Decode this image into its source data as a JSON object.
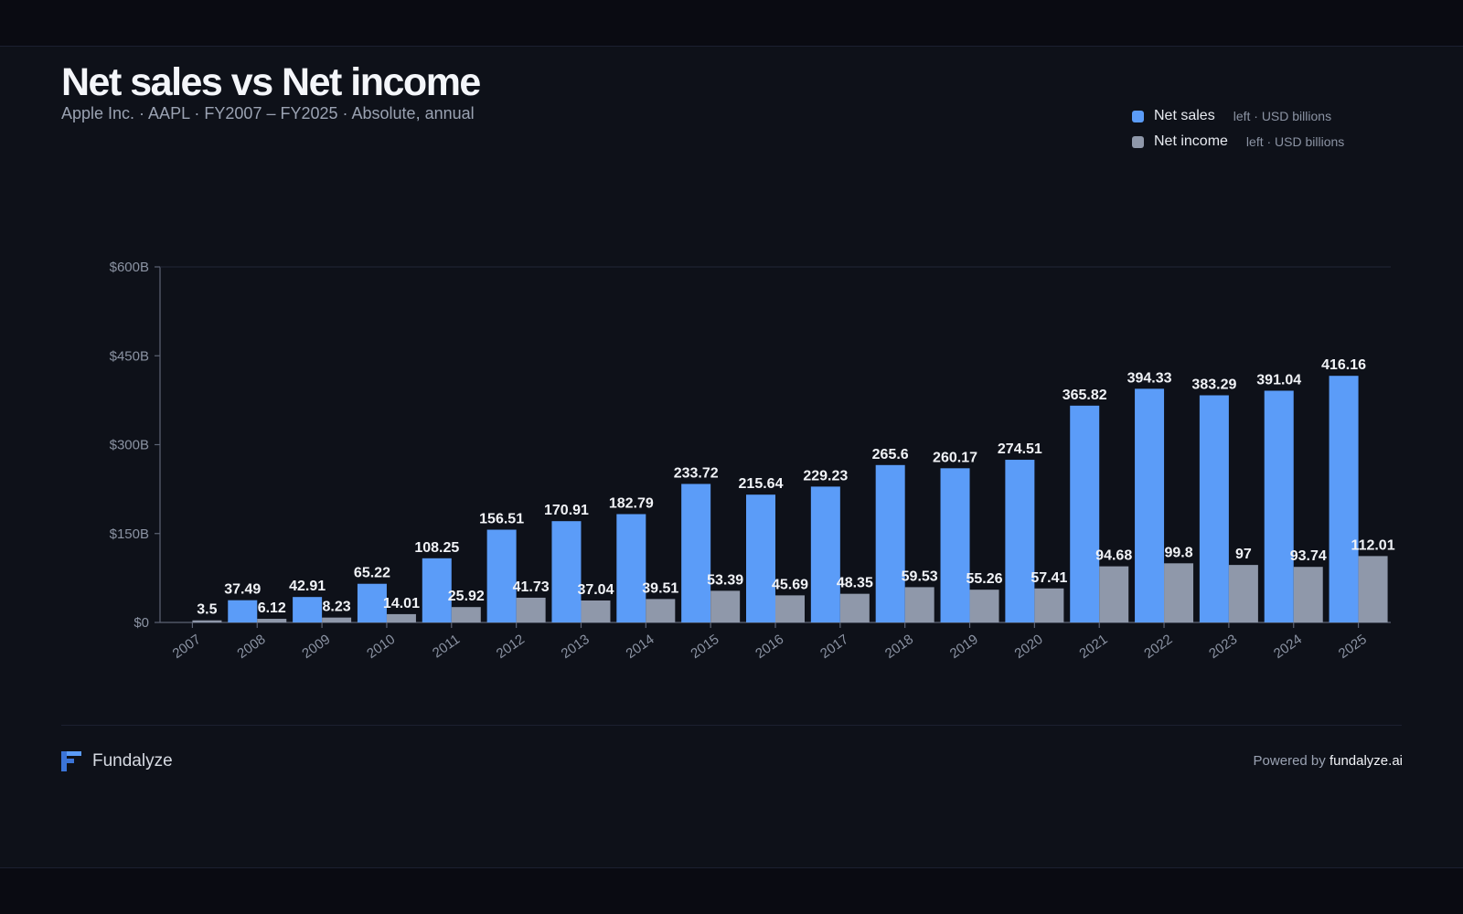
{
  "header": {
    "title": "Net sales vs Net income",
    "subtitle": "Apple Inc. · AAPL · FY2007 – FY2025 · Absolute, annual"
  },
  "legend": [
    {
      "name": "Net sales",
      "unit": "left · USD billions",
      "color": "#5b9cf8"
    },
    {
      "name": "Net income",
      "unit": "left · USD billions",
      "color": "#8f98aa"
    }
  ],
  "chart_data": {
    "type": "bar",
    "title": "Net sales vs Net income",
    "subtitle": "Apple Inc. · AAPL · FY2007 – FY2025 · Absolute, annual",
    "categories": [
      "2007",
      "2008",
      "2009",
      "2010",
      "2011",
      "2012",
      "2013",
      "2014",
      "2015",
      "2016",
      "2017",
      "2018",
      "2019",
      "2020",
      "2021",
      "2022",
      "2023",
      "2024",
      "2025"
    ],
    "series": [
      {
        "name": "Net sales",
        "color": "#5b9cf8",
        "axis": "left",
        "unit": "USD billions",
        "values": [
          null,
          37.49,
          42.91,
          65.22,
          108.25,
          156.51,
          170.91,
          182.79,
          233.72,
          215.64,
          229.23,
          265.6,
          260.17,
          274.51,
          365.82,
          394.33,
          383.29,
          391.04,
          416.16
        ]
      },
      {
        "name": "Net income",
        "color": "#8f98aa",
        "axis": "left",
        "unit": "USD billions",
        "values": [
          3.5,
          6.12,
          8.23,
          14.01,
          25.92,
          41.73,
          37.04,
          39.51,
          53.39,
          45.69,
          48.35,
          59.53,
          55.26,
          57.41,
          94.68,
          99.8,
          97,
          93.74,
          112.01
        ]
      }
    ],
    "y_ticks": [
      "$0",
      "$150B",
      "$300B",
      "$450B",
      "$600B"
    ],
    "ylim": [
      0,
      600
    ],
    "grid": false,
    "legend_position": "top-right"
  },
  "footer": {
    "brand": "Fundalyze",
    "powered_prefix": "Powered by",
    "powered_site": "fundalyze.ai"
  }
}
